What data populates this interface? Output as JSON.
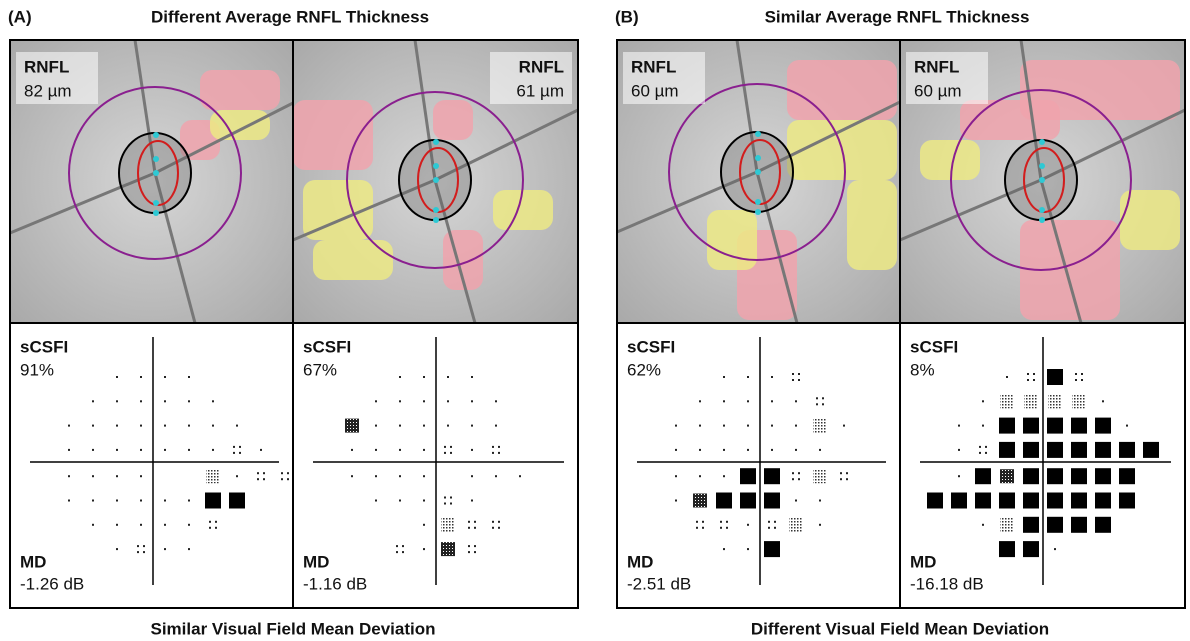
{
  "panels": [
    {
      "label": "(A)",
      "title": "Different Average RNFL Thickness",
      "caption": "Similar Visual Field Mean Deviation",
      "eyes": [
        {
          "rnfl_label": "RNFL",
          "rnfl_value": "82 µm",
          "scsfi_label": "sCSFI",
          "scsfi_value": "91%",
          "md_label": "MD",
          "md_value": "-1.26 dB"
        },
        {
          "rnfl_label": "RNFL",
          "rnfl_value": "61 µm",
          "scsfi_label": "sCSFI",
          "scsfi_value": "67%",
          "md_label": "MD",
          "md_value": "-1.16 dB"
        }
      ]
    },
    {
      "label": "(B)",
      "title": "Similar Average RNFL Thickness",
      "caption": "Different Visual Field Mean Deviation",
      "eyes": [
        {
          "rnfl_label": "RNFL",
          "rnfl_value": "60 µm",
          "scsfi_label": "sCSFI",
          "scsfi_value": "62%",
          "md_label": "MD",
          "md_value": "-2.51 dB"
        },
        {
          "rnfl_label": "RNFL",
          "rnfl_value": "60 µm",
          "scsfi_label": "sCSFI",
          "scsfi_value": "8%",
          "md_label": "MD",
          "md_value": "-16.18 dB"
        }
      ]
    }
  ]
}
